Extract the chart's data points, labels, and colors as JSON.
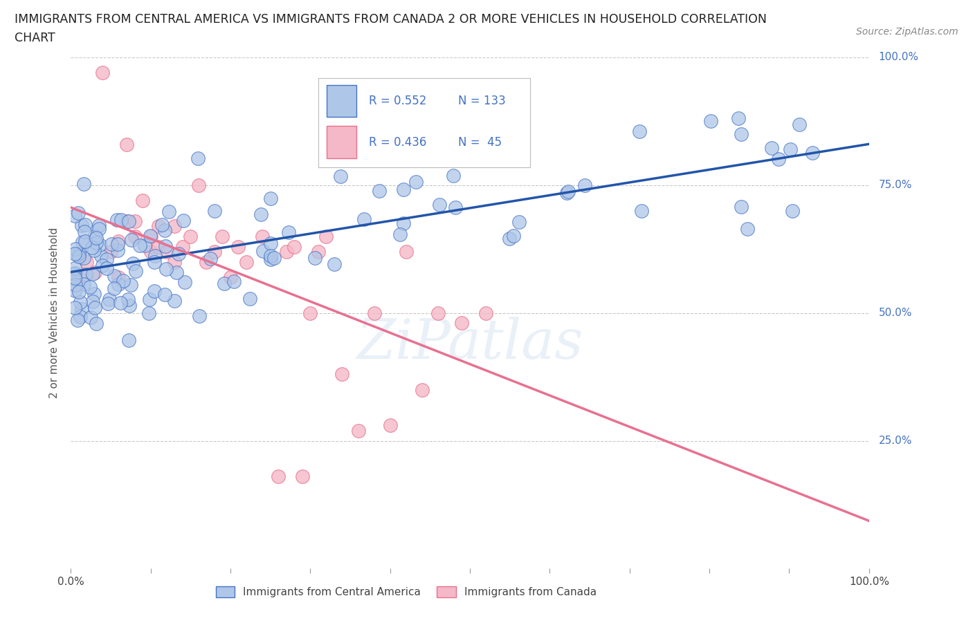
{
  "title_line1": "IMMIGRANTS FROM CENTRAL AMERICA VS IMMIGRANTS FROM CANADA 2 OR MORE VEHICLES IN HOUSEHOLD CORRELATION",
  "title_line2": "CHART",
  "source_text": "Source: ZipAtlas.com",
  "ylabel": "2 or more Vehicles in Household",
  "xmin": 0.0,
  "xmax": 1.0,
  "ymin": 0.0,
  "ymax": 1.0,
  "ytick_labels": [
    "25.0%",
    "50.0%",
    "75.0%",
    "100.0%"
  ],
  "ytick_positions": [
    0.25,
    0.5,
    0.75,
    1.0
  ],
  "legend_r1": "R = 0.552",
  "legend_n1": "N = 133",
  "legend_r2": "R = 0.436",
  "legend_n2": "N =  45",
  "legend_label1": "Immigrants from Central America",
  "legend_label2": "Immigrants from Canada",
  "color_blue_fill": "#aec6e8",
  "color_blue_edge": "#4472c4",
  "color_pink_fill": "#f4b8c8",
  "color_pink_edge": "#e8708a",
  "color_blue_line": "#2255aa",
  "color_pink_line": "#e87090",
  "color_legend_text": "#4472c4",
  "watermark": "ZiPatlas",
  "grid_color": "#c8c8c8",
  "title_color": "#222222",
  "source_color": "#888888",
  "ylabel_color": "#555555"
}
